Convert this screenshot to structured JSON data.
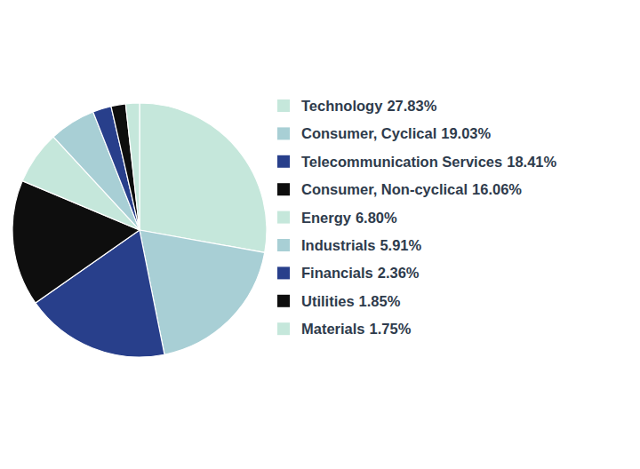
{
  "chart_data": {
    "type": "pie",
    "categories": [
      "Technology",
      "Consumer, Cyclical",
      "Telecommunication Services",
      "Consumer, Non-cyclical",
      "Energy",
      "Industrials",
      "Financials",
      "Utilities",
      "Materials"
    ],
    "values": [
      27.83,
      19.03,
      18.41,
      16.06,
      6.8,
      5.91,
      2.36,
      1.85,
      1.75
    ],
    "value_labels": [
      "27.83%",
      "19.03%",
      "18.41%",
      "16.06%",
      "6.80%",
      "5.91%",
      "2.36%",
      "1.85%",
      "1.75%"
    ],
    "colors": [
      "#c5e7db",
      "#a8cfd5",
      "#283f8b",
      "#0e0e0e",
      "#c5e7db",
      "#a8cfd5",
      "#283f8b",
      "#0e0e0e",
      "#c5e7db"
    ],
    "legend": "right"
  }
}
